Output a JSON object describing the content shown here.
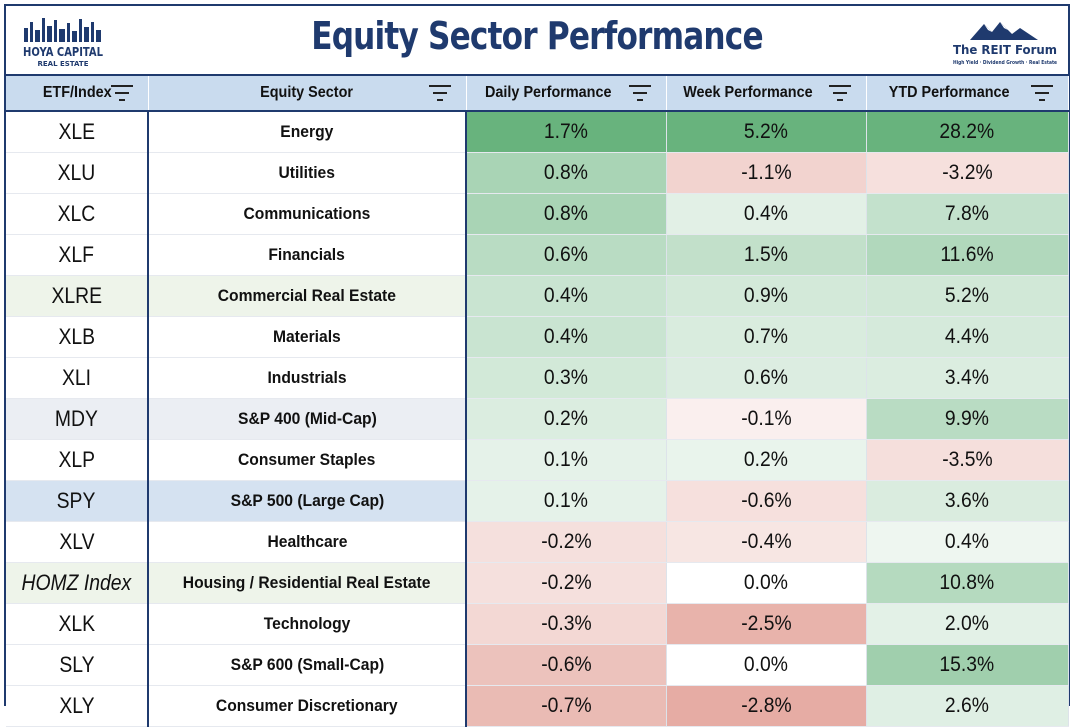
{
  "title": "Equity Sector Performance",
  "logo_left": {
    "line1": "HOYA CAPITAL",
    "line2": "REAL ESTATE"
  },
  "logo_right": {
    "name": "The REIT Forum",
    "tagline": "High Yield · Dividend Growth · Real Estate"
  },
  "columns": [
    "ETF/Index",
    "Equity Sector",
    "Daily Performance",
    "Week Performance",
    "YTD Performance"
  ],
  "colors": {
    "positive": "#57ab6f",
    "negative": "#d26c5e",
    "border": "#1f3a6e",
    "header_bg": "#c9dbee"
  },
  "chart_data": {
    "type": "table",
    "title": "Equity Sector Performance",
    "columns": [
      "ETF/Index",
      "Equity Sector",
      "Daily Performance",
      "Week Performance",
      "YTD Performance"
    ],
    "rows": [
      {
        "etf": "XLE",
        "sector": "Energy",
        "daily": "1.7%",
        "week": "5.2%",
        "ytd": "28.2%",
        "row_tint": "#ffffff",
        "italic": false
      },
      {
        "etf": "XLU",
        "sector": "Utilities",
        "daily": "0.8%",
        "week": "-1.1%",
        "ytd": "-3.2%",
        "row_tint": "#ffffff",
        "italic": false
      },
      {
        "etf": "XLC",
        "sector": "Communications",
        "daily": "0.8%",
        "week": "0.4%",
        "ytd": "7.8%",
        "row_tint": "#ffffff",
        "italic": false
      },
      {
        "etf": "XLF",
        "sector": "Financials",
        "daily": "0.6%",
        "week": "1.5%",
        "ytd": "11.6%",
        "row_tint": "#ffffff",
        "italic": false
      },
      {
        "etf": "XLRE",
        "sector": "Commercial Real Estate",
        "daily": "0.4%",
        "week": "0.9%",
        "ytd": "5.2%",
        "row_tint": "#eef4ea",
        "italic": false
      },
      {
        "etf": "XLB",
        "sector": "Materials",
        "daily": "0.4%",
        "week": "0.7%",
        "ytd": "4.4%",
        "row_tint": "#ffffff",
        "italic": false
      },
      {
        "etf": "XLI",
        "sector": "Industrials",
        "daily": "0.3%",
        "week": "0.6%",
        "ytd": "3.4%",
        "row_tint": "#ffffff",
        "italic": false
      },
      {
        "etf": "MDY",
        "sector": "S&P 400 (Mid-Cap)",
        "daily": "0.2%",
        "week": "-0.1%",
        "ytd": "9.9%",
        "row_tint": "#ebeef3",
        "italic": false
      },
      {
        "etf": "XLP",
        "sector": "Consumer Staples",
        "daily": "0.1%",
        "week": "0.2%",
        "ytd": "-3.5%",
        "row_tint": "#ffffff",
        "italic": false
      },
      {
        "etf": "SPY",
        "sector": "S&P 500 (Large Cap)",
        "daily": "0.1%",
        "week": "-0.6%",
        "ytd": "3.6%",
        "row_tint": "#d5e2f1",
        "italic": false
      },
      {
        "etf": "XLV",
        "sector": "Healthcare",
        "daily": "-0.2%",
        "week": "-0.4%",
        "ytd": "0.4%",
        "row_tint": "#ffffff",
        "italic": false
      },
      {
        "etf": "HOMZ Index",
        "sector": "Housing / Residential Real Estate",
        "daily": "-0.2%",
        "week": "0.0%",
        "ytd": "10.8%",
        "row_tint": "#eef4ea",
        "italic": true
      },
      {
        "etf": "XLK",
        "sector": "Technology",
        "daily": "-0.3%",
        "week": "-2.5%",
        "ytd": "2.0%",
        "row_tint": "#ffffff",
        "italic": false
      },
      {
        "etf": "SLY",
        "sector": "S&P 600 (Small-Cap)",
        "daily": "-0.6%",
        "week": "0.0%",
        "ytd": "15.3%",
        "row_tint": "#ffffff",
        "italic": false
      },
      {
        "etf": "XLY",
        "sector": "Consumer Discretionary",
        "daily": "-0.7%",
        "week": "-2.8%",
        "ytd": "2.6%",
        "row_tint": "#ffffff",
        "italic": false
      }
    ]
  }
}
